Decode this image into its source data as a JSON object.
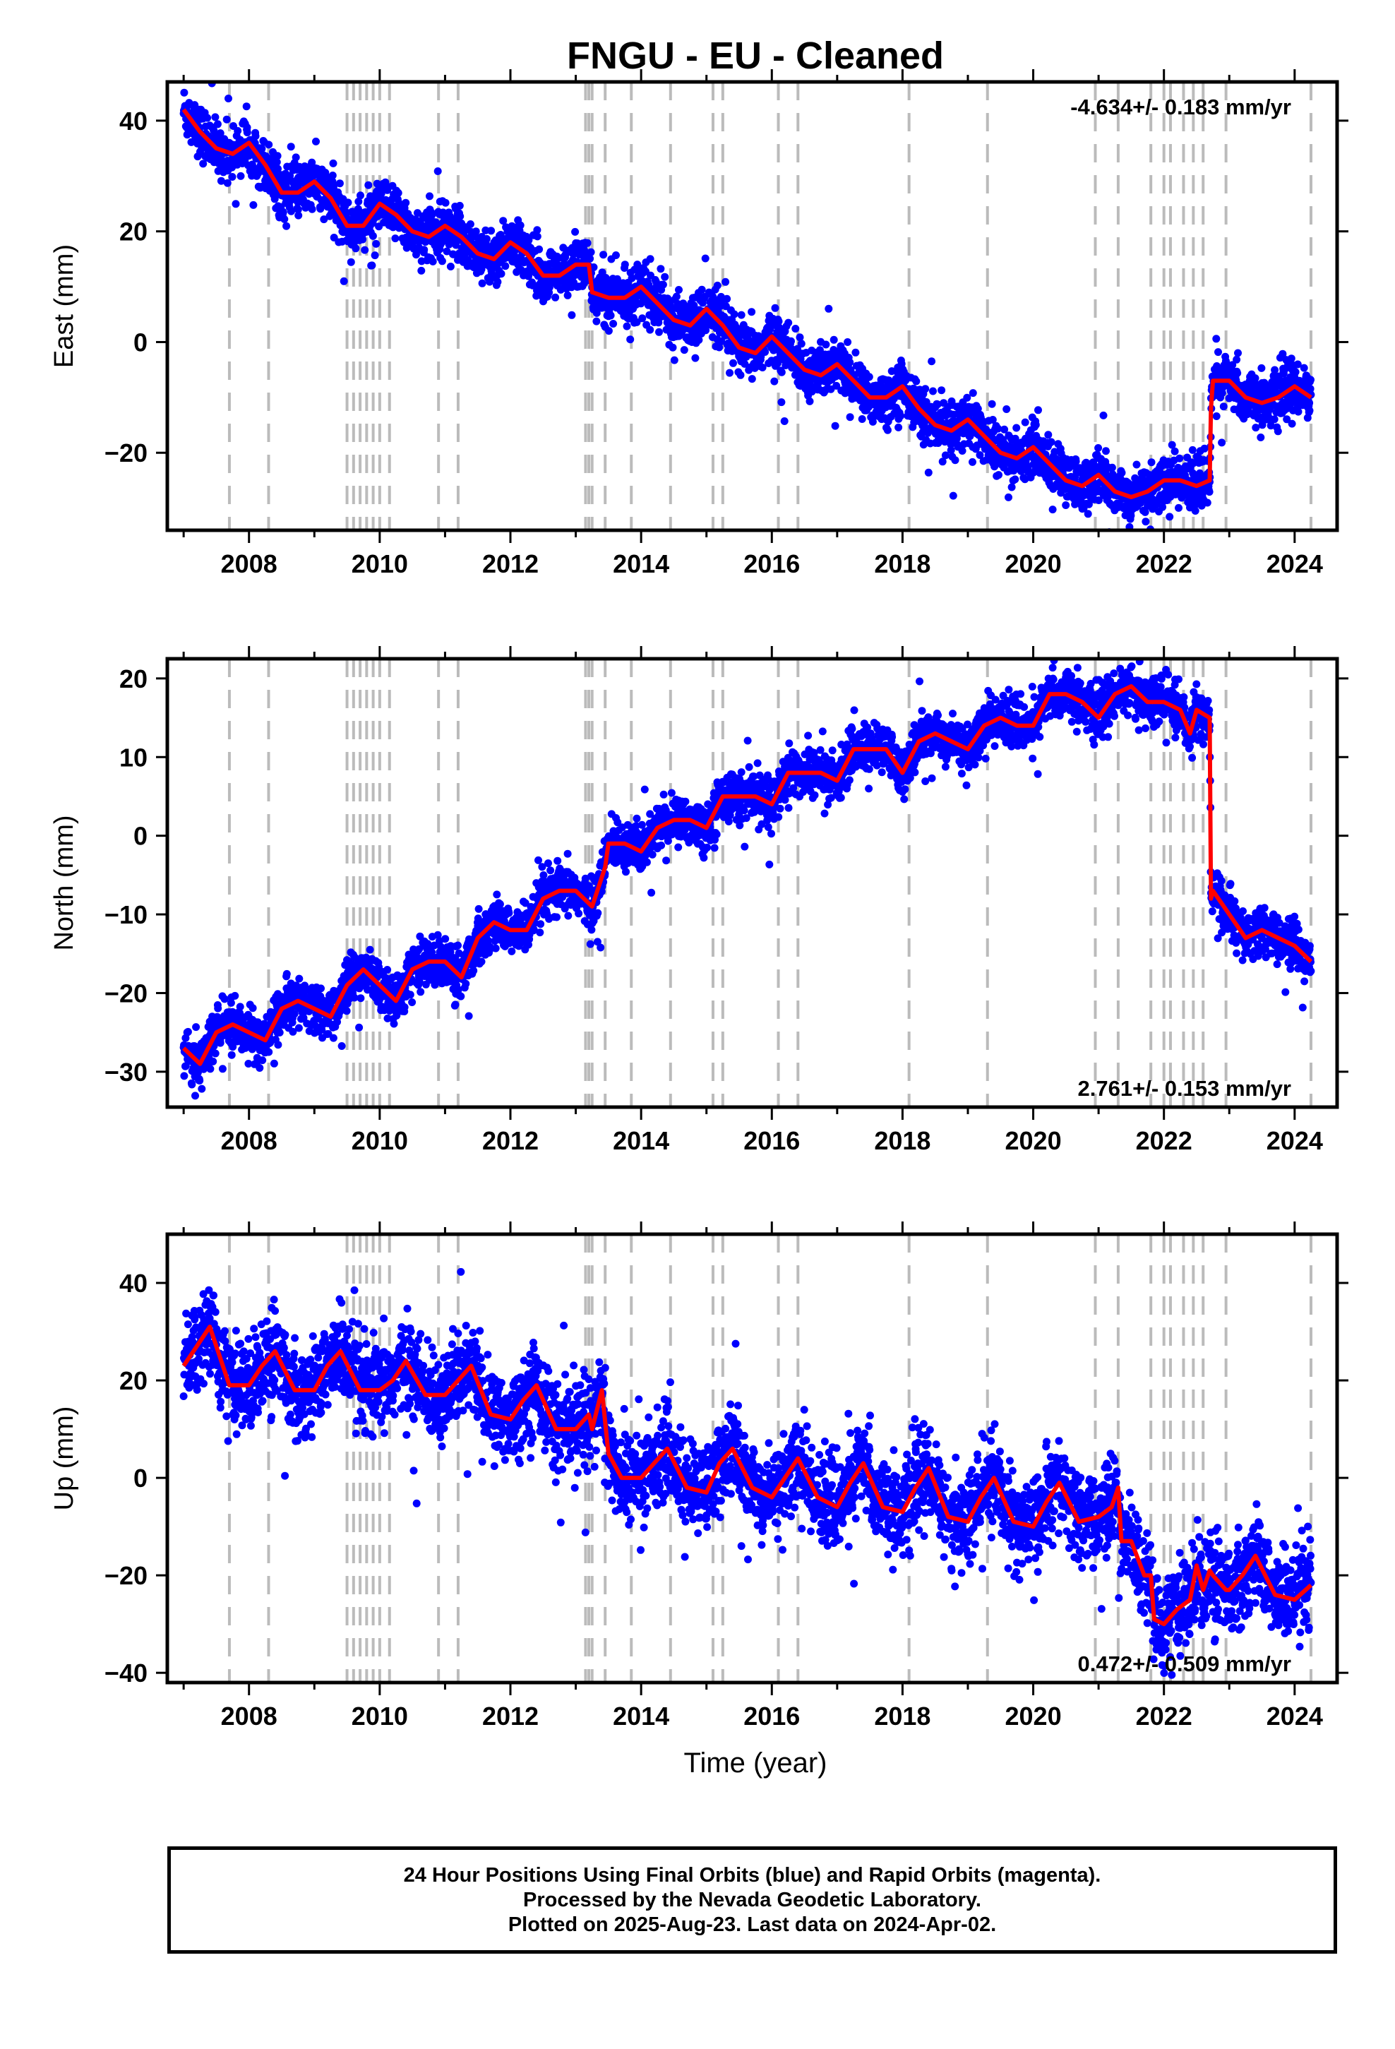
{
  "title": "FNGU  - EU - Cleaned",
  "xlabel": "Time (year)",
  "footer": {
    "line1": "24 Hour Positions Using Final Orbits (blue) and Rapid Orbits (magenta).",
    "line2": "Processed by the Nevada Geodetic Laboratory.",
    "line3": "Plotted on 2025-Aug-23. Last data on 2024-Apr-02."
  },
  "colors": {
    "points": "#0000ff",
    "model": "#ff0000",
    "steps": "#bbbbbb"
  },
  "chart_data": [
    {
      "type": "scatter",
      "name": "east",
      "ylabel": "East (mm)",
      "xlim": [
        2006.75,
        2024.65
      ],
      "ylim": [
        -34,
        47
      ],
      "yticks": [
        -20,
        0,
        20,
        40
      ],
      "xticks": [
        2008,
        2010,
        2012,
        2014,
        2016,
        2018,
        2020,
        2022,
        2024
      ],
      "rate_label": "-4.634+/- 0.183 mm/yr",
      "rate_position": "top-right",
      "trend_mm_per_yr": -4.634,
      "model": {
        "x": [
          2007.0,
          2007.25,
          2007.5,
          2007.75,
          2008.0,
          2008.25,
          2008.5,
          2008.75,
          2009.0,
          2009.25,
          2009.5,
          2009.75,
          2010.0,
          2010.25,
          2010.5,
          2010.75,
          2011.0,
          2011.25,
          2011.5,
          2011.75,
          2012.0,
          2012.25,
          2012.5,
          2012.75,
          2013.0,
          2013.2,
          2013.25,
          2013.5,
          2013.75,
          2014.0,
          2014.25,
          2014.5,
          2014.75,
          2015.0,
          2015.25,
          2015.5,
          2015.75,
          2016.0,
          2016.25,
          2016.5,
          2016.75,
          2017.0,
          2017.25,
          2017.5,
          2017.75,
          2018.0,
          2018.25,
          2018.5,
          2018.75,
          2019.0,
          2019.25,
          2019.5,
          2019.75,
          2020.0,
          2020.25,
          2020.5,
          2020.75,
          2021.0,
          2021.25,
          2021.5,
          2021.75,
          2022.0,
          2022.25,
          2022.5,
          2022.7,
          2022.72,
          2022.75,
          2023.0,
          2023.25,
          2023.5,
          2023.75,
          2024.0,
          2024.25
        ],
        "y": [
          42,
          38,
          35,
          34,
          36,
          32,
          27,
          27,
          29,
          26,
          21,
          21,
          25,
          23,
          20,
          19,
          21,
          19,
          16,
          15,
          18,
          16,
          12,
          12,
          14,
          14,
          9,
          8,
          8,
          10,
          7,
          4,
          3,
          6,
          3,
          -1,
          -2,
          1,
          -2,
          -5,
          -6,
          -4,
          -7,
          -10,
          -10,
          -8,
          -12,
          -15,
          -16,
          -14,
          -17,
          -20,
          -21,
          -19,
          -22,
          -25,
          -26,
          -24,
          -27,
          -28,
          -27,
          -25,
          -25,
          -26,
          -25,
          -12,
          -7,
          -7,
          -10,
          -11,
          -10,
          -8,
          -10
        ]
      },
      "noise": 2.3,
      "steps": [
        2007.7,
        2008.3,
        2009.5,
        2009.6,
        2009.7,
        2009.8,
        2009.9,
        2010.0,
        2010.15,
        2010.9,
        2011.2,
        2013.15,
        2013.2,
        2013.25,
        2013.45,
        2013.85,
        2014.45,
        2015.1,
        2015.25,
        2016.1,
        2016.4,
        2018.1,
        2019.3,
        2020.95,
        2021.3,
        2021.8,
        2022.0,
        2022.1,
        2022.3,
        2022.45,
        2022.6,
        2022.95,
        2024.25
      ]
    },
    {
      "type": "scatter",
      "name": "north",
      "ylabel": "North (mm)",
      "xlim": [
        2006.75,
        2024.65
      ],
      "ylim": [
        -34.5,
        22.5
      ],
      "yticks": [
        -30,
        -20,
        -10,
        0,
        10,
        20
      ],
      "xticks": [
        2008,
        2010,
        2012,
        2014,
        2016,
        2018,
        2020,
        2022,
        2024
      ],
      "rate_label": "2.761+/- 0.153 mm/yr",
      "rate_position": "bottom-right",
      "trend_mm_per_yr": 2.761,
      "model": {
        "x": [
          2007.0,
          2007.25,
          2007.5,
          2007.75,
          2008.0,
          2008.25,
          2008.5,
          2008.75,
          2009.0,
          2009.25,
          2009.5,
          2009.75,
          2010.0,
          2010.25,
          2010.5,
          2010.75,
          2011.0,
          2011.25,
          2011.5,
          2011.75,
          2012.0,
          2012.25,
          2012.5,
          2012.75,
          2013.0,
          2013.25,
          2013.45,
          2013.5,
          2013.75,
          2014.0,
          2014.25,
          2014.5,
          2014.75,
          2015.0,
          2015.25,
          2015.5,
          2015.75,
          2016.0,
          2016.25,
          2016.5,
          2016.75,
          2017.0,
          2017.25,
          2017.5,
          2017.75,
          2018.0,
          2018.25,
          2018.5,
          2018.75,
          2019.0,
          2019.25,
          2019.5,
          2019.75,
          2020.0,
          2020.25,
          2020.5,
          2020.75,
          2021.0,
          2021.25,
          2021.5,
          2021.75,
          2022.0,
          2022.25,
          2022.4,
          2022.5,
          2022.7,
          2022.72,
          2022.75,
          2023.0,
          2023.25,
          2023.5,
          2023.75,
          2024.0,
          2024.25
        ],
        "y": [
          -27,
          -29,
          -25,
          -24,
          -25,
          -26,
          -22,
          -21,
          -22,
          -23,
          -19,
          -17,
          -19,
          -21,
          -17,
          -16,
          -16,
          -18,
          -13,
          -11,
          -12,
          -12,
          -8,
          -7,
          -7,
          -9,
          -4,
          -1,
          -1,
          -2,
          1,
          2,
          2,
          1,
          5,
          5,
          5,
          4,
          8,
          8,
          8,
          7,
          11,
          11,
          11,
          8,
          12,
          13,
          12,
          11,
          14,
          15,
          14,
          14,
          18,
          18,
          17,
          15,
          18,
          19,
          17,
          17,
          16,
          13,
          16,
          15,
          -8,
          -7,
          -10,
          -13,
          -12,
          -13,
          -14,
          -16
        ]
      },
      "noise": 1.5,
      "steps": [
        2007.7,
        2008.3,
        2009.5,
        2009.6,
        2009.7,
        2009.8,
        2009.9,
        2010.0,
        2010.15,
        2010.9,
        2011.2,
        2013.15,
        2013.2,
        2013.25,
        2013.45,
        2013.85,
        2014.45,
        2015.1,
        2015.25,
        2016.1,
        2016.4,
        2018.1,
        2019.3,
        2020.95,
        2021.3,
        2021.8,
        2022.0,
        2022.1,
        2022.3,
        2022.45,
        2022.6,
        2022.95,
        2024.25
      ]
    },
    {
      "type": "scatter",
      "name": "up",
      "ylabel": "Up (mm)",
      "xlim": [
        2006.75,
        2024.65
      ],
      "ylim": [
        -42,
        50
      ],
      "yticks": [
        -40,
        -20,
        0,
        20,
        40
      ],
      "xticks": [
        2008,
        2010,
        2012,
        2014,
        2016,
        2018,
        2020,
        2022,
        2024
      ],
      "rate_label": "0.472+/- 0.509 mm/yr",
      "rate_position": "bottom-right",
      "trend_mm_per_yr": 0.472,
      "model": {
        "x": [
          2007.0,
          2007.2,
          2007.4,
          2007.7,
          2008.0,
          2008.2,
          2008.4,
          2008.7,
          2009.0,
          2009.2,
          2009.4,
          2009.7,
          2010.0,
          2010.2,
          2010.4,
          2010.7,
          2011.0,
          2011.2,
          2011.4,
          2011.7,
          2012.0,
          2012.2,
          2012.4,
          2012.7,
          2013.0,
          2013.2,
          2013.25,
          2013.4,
          2013.5,
          2013.7,
          2014.0,
          2014.2,
          2014.4,
          2014.7,
          2015.0,
          2015.2,
          2015.4,
          2015.7,
          2016.0,
          2016.2,
          2016.4,
          2016.7,
          2017.0,
          2017.2,
          2017.4,
          2017.7,
          2018.0,
          2018.2,
          2018.4,
          2018.7,
          2019.0,
          2019.2,
          2019.4,
          2019.7,
          2020.0,
          2020.2,
          2020.4,
          2020.7,
          2021.0,
          2021.2,
          2021.3,
          2021.35,
          2021.5,
          2021.7,
          2021.8,
          2021.85,
          2022.0,
          2022.2,
          2022.4,
          2022.5,
          2022.6,
          2022.7,
          2022.75,
          2022.95,
          2023.0,
          2023.2,
          2023.4,
          2023.7,
          2024.0,
          2024.25
        ],
        "y": [
          23,
          27,
          31,
          19,
          19,
          23,
          26,
          18,
          18,
          23,
          26,
          18,
          18,
          20,
          24,
          17,
          17,
          20,
          23,
          13,
          12,
          16,
          19,
          10,
          10,
          13,
          10,
          18,
          5,
          0,
          0,
          3,
          6,
          -2,
          -3,
          3,
          6,
          -2,
          -4,
          0,
          4,
          -4,
          -6,
          -1,
          3,
          -6,
          -7,
          -2,
          2,
          -8,
          -9,
          -4,
          0,
          -9,
          -10,
          -5,
          -1,
          -9,
          -8,
          -6,
          -2,
          -13,
          -13,
          -20,
          -20,
          -29,
          -30,
          -27,
          -25,
          -18,
          -23,
          -19,
          -20,
          -23,
          -23,
          -20,
          -16,
          -24,
          -25,
          -22
        ]
      },
      "noise": 4.5,
      "steps": [
        2007.7,
        2008.3,
        2009.5,
        2009.6,
        2009.7,
        2009.8,
        2009.9,
        2010.0,
        2010.15,
        2010.9,
        2011.2,
        2013.15,
        2013.2,
        2013.25,
        2013.45,
        2013.85,
        2014.45,
        2015.1,
        2015.25,
        2016.1,
        2016.4,
        2018.1,
        2019.3,
        2020.95,
        2021.3,
        2021.8,
        2022.0,
        2022.1,
        2022.3,
        2022.45,
        2022.6,
        2022.95,
        2024.25
      ]
    }
  ]
}
